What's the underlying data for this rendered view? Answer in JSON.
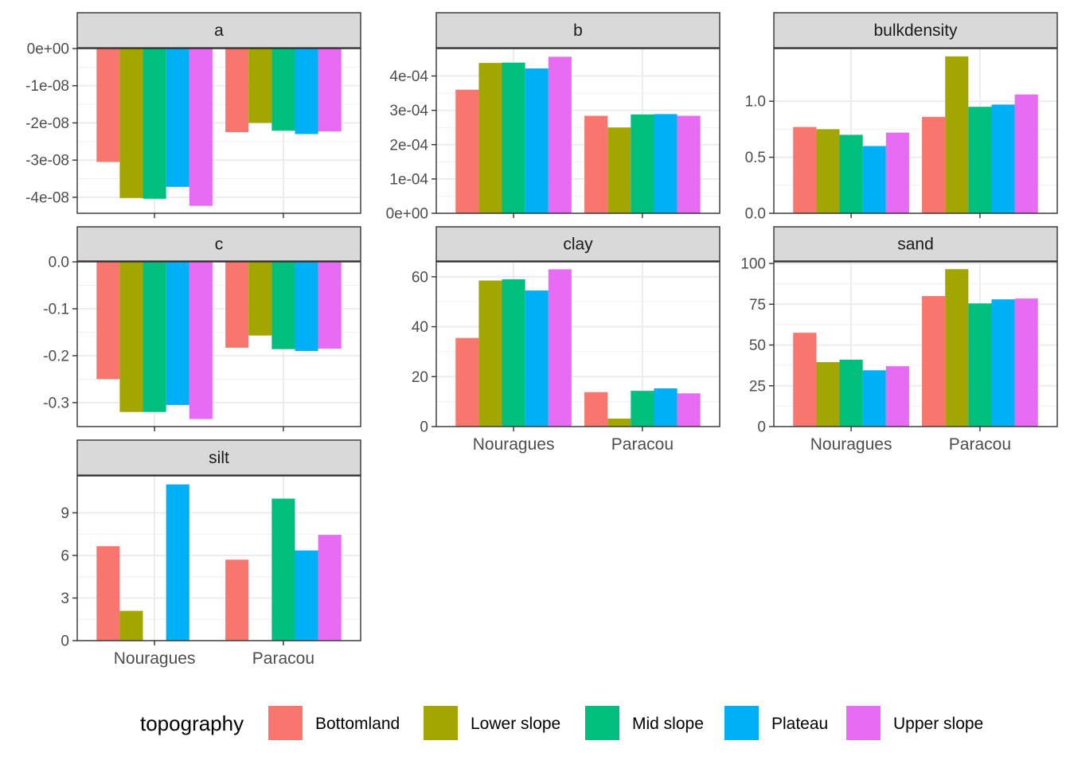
{
  "chart_data": {
    "type": "bar",
    "layout": "faceted grid, 3 columns, free y-scales",
    "grid": true,
    "legend_position": "bottom",
    "categories": [
      "Nouragues",
      "Paracou"
    ],
    "legend": {
      "title": "topography",
      "entries": [
        {
          "name": "Bottomland",
          "color": "#F8766D"
        },
        {
          "name": "Lower slope",
          "color": "#A3A500"
        },
        {
          "name": "Mid slope",
          "color": "#00BF7D"
        },
        {
          "name": "Plateau",
          "color": "#00B0F6"
        },
        {
          "name": "Upper slope",
          "color": "#E76BF3"
        }
      ]
    },
    "facets": [
      {
        "name": "a",
        "ylim": [
          -4.43e-08,
          0
        ],
        "yticks": [
          0,
          -1e-08,
          -2e-08,
          -3e-08,
          -4e-08
        ],
        "ytick_labels": [
          "0e+00",
          "-1e-08",
          "-2e-08",
          "-3e-08",
          "-4e-08"
        ],
        "show_x_labels": false,
        "values": {
          "Nouragues": [
            -3.05e-08,
            -4.02e-08,
            -4.04e-08,
            -3.72e-08,
            -4.23e-08
          ],
          "Paracou": [
            -2.25e-08,
            -2e-08,
            -2.21e-08,
            -2.3e-08,
            -2.23e-08
          ]
        }
      },
      {
        "name": "b",
        "ylim": [
          0,
          0.00048
        ],
        "yticks": [
          0,
          0.0001,
          0.0002,
          0.0003,
          0.0004
        ],
        "ytick_labels": [
          "0e+00",
          "1e-04",
          "2e-04",
          "3e-04",
          "4e-04"
        ],
        "show_x_labels": false,
        "values": {
          "Nouragues": [
            0.00036,
            0.000438,
            0.000439,
            0.000422,
            0.000456
          ],
          "Paracou": [
            0.000284,
            0.00025,
            0.000288,
            0.000289,
            0.000284
          ]
        }
      },
      {
        "name": "bulkdensity",
        "ylim": [
          0,
          1.47
        ],
        "yticks": [
          0,
          0.5,
          1.0
        ],
        "ytick_labels": [
          "0.0",
          "0.5",
          "1.0"
        ],
        "show_x_labels": false,
        "values": {
          "Nouragues": [
            0.77,
            0.75,
            0.7,
            0.6,
            0.72
          ],
          "Paracou": [
            0.86,
            1.4,
            0.95,
            0.97,
            1.06
          ]
        }
      },
      {
        "name": "c",
        "ylim": [
          -0.351,
          0
        ],
        "yticks": [
          0,
          -0.1,
          -0.2,
          -0.3
        ],
        "ytick_labels": [
          "0.0",
          "-0.1",
          "-0.2",
          "-0.3"
        ],
        "show_x_labels": false,
        "values": {
          "Nouragues": [
            -0.25,
            -0.32,
            -0.32,
            -0.305,
            -0.335
          ],
          "Paracou": [
            -0.183,
            -0.157,
            -0.186,
            -0.19,
            -0.185
          ]
        }
      },
      {
        "name": "clay",
        "ylim": [
          0,
          66
        ],
        "yticks": [
          0,
          20,
          40,
          60
        ],
        "ytick_labels": [
          "0",
          "20",
          "40",
          "60"
        ],
        "show_x_labels": true,
        "values": {
          "Nouragues": [
            35.5,
            58.5,
            59,
            54.5,
            63
          ],
          "Paracou": [
            13.8,
            3.2,
            14.3,
            15.3,
            13.3
          ]
        }
      },
      {
        "name": "sand",
        "ylim": [
          0,
          101
        ],
        "yticks": [
          0,
          25,
          50,
          75,
          100
        ],
        "ytick_labels": [
          "0",
          "25",
          "50",
          "75",
          "100"
        ],
        "show_x_labels": true,
        "values": {
          "Nouragues": [
            57.5,
            39.5,
            41,
            34.5,
            37
          ],
          "Paracou": [
            80,
            96.5,
            75.5,
            78,
            78.5
          ]
        }
      },
      {
        "name": "silt",
        "ylim": [
          0,
          11.6
        ],
        "yticks": [
          0,
          3,
          6,
          9
        ],
        "ytick_labels": [
          "0",
          "3",
          "6",
          "9"
        ],
        "show_x_labels": true,
        "values": {
          "Nouragues": [
            6.65,
            2.1,
            0,
            11.0,
            0
          ],
          "Paracou": [
            5.7,
            0,
            10.0,
            6.35,
            7.45
          ]
        }
      }
    ]
  }
}
